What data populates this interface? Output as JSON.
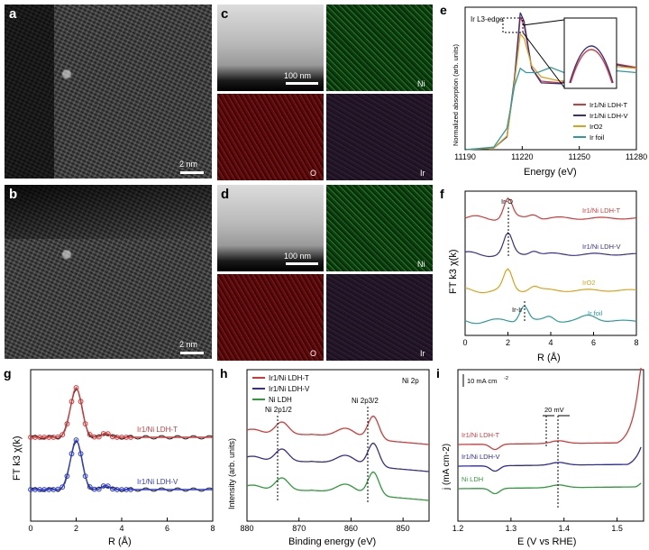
{
  "panels": {
    "a": {
      "letter": "a",
      "scalebar": "2 nm"
    },
    "b": {
      "letter": "b",
      "scalebar": "2 nm"
    },
    "c": {
      "letter": "c",
      "scalebar": "100 nm",
      "maps": [
        "Ni",
        "O",
        "Ir"
      ]
    },
    "d": {
      "letter": "d",
      "scalebar": "100 nm",
      "maps": [
        "Ni",
        "O",
        "Ir"
      ]
    },
    "e": {
      "letter": "e",
      "edge_label": "Ir L3-edge"
    },
    "f": {
      "letter": "f",
      "peak_labels": [
        "Ir-O",
        "Ir-Ir"
      ]
    },
    "g": {
      "letter": "g"
    },
    "h": {
      "letter": "h",
      "region_label": "Ni 2p",
      "peak_labels": [
        "Ni 2p1/2",
        "Ni 2p3/2"
      ]
    },
    "i": {
      "letter": "i",
      "scale_label": "10 mA cm",
      "shift_label": "20 mV"
    }
  },
  "chart_data": [
    {
      "id": "e",
      "type": "line",
      "xlabel": "Energy (eV)",
      "ylabel": "Normalized absorption (arb. units)",
      "xlim": [
        11190,
        11280
      ],
      "xticks": [
        11190,
        11220,
        11250,
        11280
      ],
      "series": [
        {
          "name": "Ir1/Ni LDH-T",
          "color": "#d23a3a",
          "points": [
            [
              11190,
              0.0
            ],
            [
              11205,
              0.02
            ],
            [
              11212,
              0.15
            ],
            [
              11216,
              0.8
            ],
            [
              11219,
              1.55
            ],
            [
              11221,
              1.45
            ],
            [
              11225,
              0.95
            ],
            [
              11230,
              0.8
            ],
            [
              11240,
              0.78
            ],
            [
              11250,
              0.85
            ],
            [
              11260,
              0.95
            ],
            [
              11270,
              1.0
            ],
            [
              11280,
              0.96
            ]
          ]
        },
        {
          "name": "Ir1/Ni LDH-V",
          "color": "#3a2e8c",
          "points": [
            [
              11190,
              0.0
            ],
            [
              11205,
              0.02
            ],
            [
              11212,
              0.15
            ],
            [
              11216,
              0.85
            ],
            [
              11219,
              1.6
            ],
            [
              11221,
              1.5
            ],
            [
              11225,
              0.95
            ],
            [
              11230,
              0.78
            ],
            [
              11240,
              0.77
            ],
            [
              11250,
              0.84
            ],
            [
              11260,
              0.94
            ],
            [
              11270,
              0.99
            ],
            [
              11280,
              0.95
            ]
          ]
        },
        {
          "name": "IrO2",
          "color": "#d9a21b",
          "points": [
            [
              11190,
              0.0
            ],
            [
              11205,
              0.02
            ],
            [
              11212,
              0.16
            ],
            [
              11216,
              0.8
            ],
            [
              11219,
              1.35
            ],
            [
              11221,
              1.3
            ],
            [
              11225,
              0.98
            ],
            [
              11230,
              0.85
            ],
            [
              11240,
              0.8
            ],
            [
              11250,
              0.83
            ],
            [
              11260,
              0.92
            ],
            [
              11270,
              0.97
            ],
            [
              11280,
              0.95
            ]
          ]
        },
        {
          "name": "Ir foil",
          "color": "#2e9a9a",
          "points": [
            [
              11190,
              0.0
            ],
            [
              11205,
              0.03
            ],
            [
              11212,
              0.25
            ],
            [
              11216,
              0.75
            ],
            [
              11219,
              0.95
            ],
            [
              11222,
              0.9
            ],
            [
              11228,
              0.9
            ],
            [
              11235,
              0.96
            ],
            [
              11242,
              0.9
            ],
            [
              11250,
              0.88
            ],
            [
              11260,
              0.9
            ],
            [
              11270,
              0.92
            ],
            [
              11280,
              0.9
            ]
          ]
        }
      ]
    },
    {
      "id": "f",
      "type": "line",
      "xlabel": "R (Å)",
      "ylabel": "FT k3 χ(k)",
      "xlim": [
        0,
        8
      ],
      "xticks": [
        0,
        2,
        4,
        6,
        8
      ],
      "series": [
        {
          "name": "Ir1/Ni LDH-T",
          "color": "#d23a3a",
          "offset": 3
        },
        {
          "name": "Ir1/Ni LDH-V",
          "color": "#3a2e8c",
          "offset": 2
        },
        {
          "name": "IrO2",
          "color": "#d9a21b",
          "offset": 1
        },
        {
          "name": "Ir foil",
          "color": "#2e9a9a",
          "offset": 0
        }
      ]
    },
    {
      "id": "g",
      "type": "line",
      "xlabel": "R (Å)",
      "ylabel": "FT k3 χ(k)",
      "xlim": [
        0,
        8
      ],
      "xticks": [
        0,
        2,
        4,
        6,
        8
      ],
      "series": [
        {
          "name": "Ir1/Ni LDH-T",
          "color": "#d23a3a"
        },
        {
          "name": "Ir1/Ni LDH-V",
          "color": "#2b3bd6"
        }
      ]
    },
    {
      "id": "h",
      "type": "line",
      "xlabel": "Binding energy (eV)",
      "ylabel": "Intensity (arb. units)",
      "xlim": [
        880,
        845
      ],
      "xticks": [
        880,
        870,
        860,
        850
      ],
      "series": [
        {
          "name": "Ir1/Ni LDH-T",
          "color": "#d23a3a"
        },
        {
          "name": "Ir1/Ni LDH-V",
          "color": "#3a2e8c"
        },
        {
          "name": "Ni LDH",
          "color": "#2e9a3a"
        }
      ]
    },
    {
      "id": "i",
      "type": "line",
      "xlabel": "E (V vs RHE)",
      "ylabel": "j (mA cm-2)",
      "xlim": [
        1.2,
        1.55
      ],
      "xticks": [
        1.2,
        1.3,
        1.4,
        1.5
      ],
      "series": [
        {
          "name": "Ir1/Ni LDH-T",
          "color": "#d23a3a"
        },
        {
          "name": "Ir1/Ni LDH-V",
          "color": "#2b2ba0"
        },
        {
          "name": "Ni LDH",
          "color": "#2e9a3a"
        }
      ]
    }
  ]
}
